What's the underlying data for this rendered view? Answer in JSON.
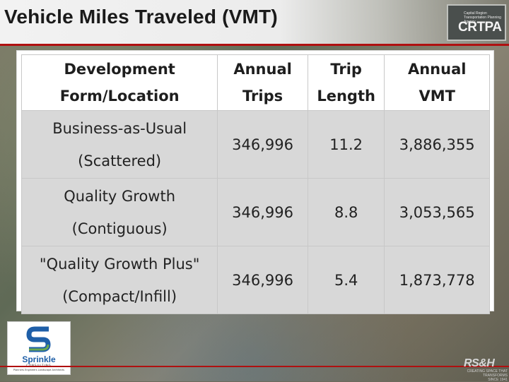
{
  "slide": {
    "title": "Vehicle Miles Traveled (VMT)"
  },
  "logos": {
    "crtpa_small": "Capital Region Transportation Planning Agency",
    "crtpa_big": "CRTPA",
    "sprinkle_name": "Sprinkle",
    "sprinkle_sub": "CONSULTING",
    "sprinkle_tagline": "Planners Engineers Landscape Architects",
    "rsh": "RS&H",
    "rsh_tagline_1": "CREATING SPACE THAT TRANSFORMS",
    "rsh_tagline_2": "SINCE 1941"
  },
  "table": {
    "headers": [
      [
        "Development",
        "Form/Location"
      ],
      [
        "Annual",
        "Trips"
      ],
      [
        "Trip",
        "Length"
      ],
      [
        "Annual",
        "VMT"
      ]
    ],
    "rows": [
      {
        "form": [
          "Business-as-Usual",
          "(Scattered)"
        ],
        "trips": "346,996",
        "length": "11.2",
        "vmt": "3,886,355"
      },
      {
        "form": [
          "Quality Growth",
          "(Contiguous)"
        ],
        "trips": "346,996",
        "length": "8.8",
        "vmt": "3,053,565"
      },
      {
        "form": [
          "\"Quality Growth Plus\"",
          "(Compact/Infill)"
        ],
        "trips": "346,996",
        "length": "5.4",
        "vmt": "1,873,778"
      }
    ]
  },
  "colors": {
    "accent_red": "#b01010",
    "table_row_fill": "#d8d8d8",
    "sprinkle_blue": "#1f5fa8",
    "sprinkle_green": "#6aa84f"
  }
}
